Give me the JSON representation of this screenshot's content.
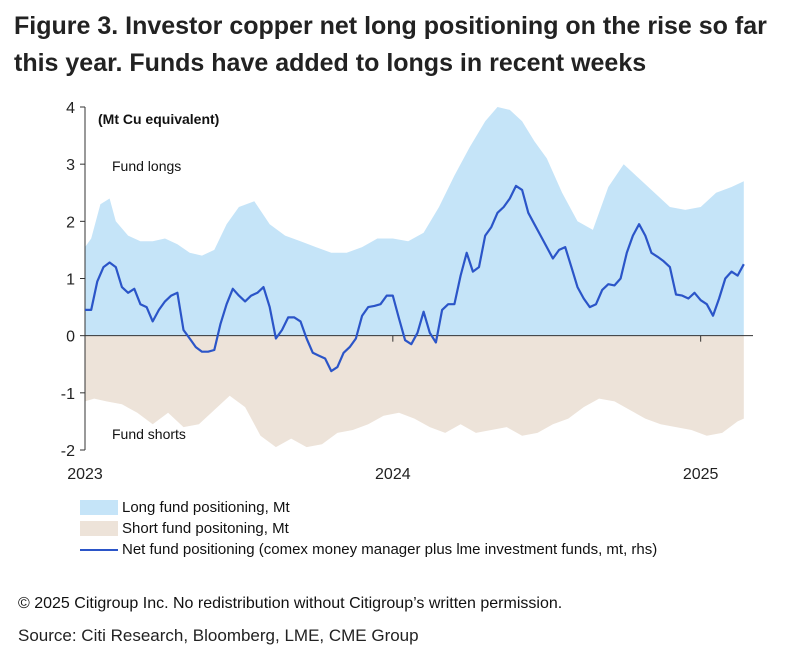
{
  "title": "Figure 3. Investor copper net long positioning on the rise so far this year. Funds have added to longs in recent weeks",
  "chart_data": {
    "type": "area",
    "unit_label": "(Mt Cu equivalent)",
    "ylim": [
      -2,
      4
    ],
    "yticks": [
      4,
      3,
      2,
      1,
      0,
      -1,
      -2
    ],
    "xlim": [
      2023.0,
      2025.17
    ],
    "xticks": [
      {
        "value": 2023.0,
        "label": "2023"
      },
      {
        "value": 2024.0,
        "label": "2024"
      },
      {
        "value": 2025.0,
        "label": "2025"
      }
    ],
    "annotations": {
      "longs": "Fund longs",
      "shorts": "Fund shorts"
    },
    "colors": {
      "long": "#c5e4f8",
      "short": "#ede3d9",
      "net": "#2b55c8"
    },
    "series": [
      {
        "name": "Long fund positioning, Mt",
        "x": [
          2023.0,
          2023.02,
          2023.05,
          2023.08,
          2023.1,
          2023.14,
          2023.18,
          2023.22,
          2023.26,
          2023.3,
          2023.34,
          2023.38,
          2023.42,
          2023.46,
          2023.5,
          2023.55,
          2023.6,
          2023.65,
          2023.7,
          2023.75,
          2023.8,
          2023.85,
          2023.9,
          2023.95,
          2024.0,
          2024.05,
          2024.1,
          2024.15,
          2024.2,
          2024.25,
          2024.3,
          2024.34,
          2024.38,
          2024.42,
          2024.46,
          2024.5,
          2024.55,
          2024.6,
          2024.65,
          2024.7,
          2024.75,
          2024.8,
          2024.85,
          2024.9,
          2024.95,
          2025.0,
          2025.05,
          2025.1,
          2025.14
        ],
        "values": [
          1.55,
          1.7,
          2.3,
          2.4,
          2.0,
          1.75,
          1.65,
          1.65,
          1.7,
          1.6,
          1.45,
          1.4,
          1.5,
          1.95,
          2.25,
          2.35,
          1.95,
          1.75,
          1.65,
          1.55,
          1.45,
          1.45,
          1.55,
          1.7,
          1.7,
          1.65,
          1.8,
          2.25,
          2.8,
          3.3,
          3.75,
          4.0,
          3.95,
          3.75,
          3.4,
          3.1,
          2.5,
          2.0,
          1.85,
          2.6,
          3.0,
          2.75,
          2.5,
          2.25,
          2.2,
          2.25,
          2.5,
          2.6,
          2.7
        ]
      },
      {
        "name": "Short fund positoning, Mt",
        "x": [
          2023.0,
          2023.03,
          2023.07,
          2023.12,
          2023.17,
          2023.22,
          2023.27,
          2023.32,
          2023.37,
          2023.42,
          2023.47,
          2023.52,
          2023.57,
          2023.62,
          2023.67,
          2023.72,
          2023.77,
          2023.82,
          2023.87,
          2023.92,
          2023.97,
          2024.02,
          2024.07,
          2024.12,
          2024.17,
          2024.22,
          2024.27,
          2024.32,
          2024.37,
          2024.42,
          2024.47,
          2024.52,
          2024.57,
          2024.62,
          2024.67,
          2024.72,
          2024.77,
          2024.82,
          2024.87,
          2024.92,
          2024.97,
          2025.02,
          2025.07,
          2025.12,
          2025.14
        ],
        "values": [
          -1.15,
          -1.1,
          -1.15,
          -1.2,
          -1.35,
          -1.55,
          -1.35,
          -1.6,
          -1.55,
          -1.3,
          -1.05,
          -1.25,
          -1.75,
          -1.95,
          -1.8,
          -1.95,
          -1.9,
          -1.7,
          -1.65,
          -1.55,
          -1.4,
          -1.35,
          -1.45,
          -1.6,
          -1.7,
          -1.55,
          -1.7,
          -1.65,
          -1.6,
          -1.75,
          -1.7,
          -1.55,
          -1.45,
          -1.25,
          -1.1,
          -1.15,
          -1.3,
          -1.45,
          -1.55,
          -1.6,
          -1.65,
          -1.75,
          -1.7,
          -1.5,
          -1.45
        ]
      },
      {
        "name": "Net fund positioning (comex money manager plus lme investment funds, mt, rhs)",
        "x": [
          2023.0,
          2023.02,
          2023.04,
          2023.06,
          2023.08,
          2023.1,
          2023.12,
          2023.14,
          2023.16,
          2023.18,
          2023.2,
          2023.22,
          2023.24,
          2023.26,
          2023.28,
          2023.3,
          2023.32,
          2023.34,
          2023.36,
          2023.38,
          2023.4,
          2023.42,
          2023.44,
          2023.46,
          2023.48,
          2023.5,
          2023.52,
          2023.54,
          2023.56,
          2023.58,
          2023.6,
          2023.62,
          2023.64,
          2023.66,
          2023.68,
          2023.7,
          2023.72,
          2023.74,
          2023.76,
          2023.78,
          2023.8,
          2023.82,
          2023.84,
          2023.86,
          2023.88,
          2023.9,
          2023.92,
          2023.94,
          2023.96,
          2023.98,
          2024.0,
          2024.02,
          2024.04,
          2024.06,
          2024.08,
          2024.1,
          2024.12,
          2024.14,
          2024.16,
          2024.18,
          2024.2,
          2024.22,
          2024.24,
          2024.26,
          2024.28,
          2024.3,
          2024.32,
          2024.34,
          2024.36,
          2024.38,
          2024.4,
          2024.42,
          2024.44,
          2024.46,
          2024.48,
          2024.5,
          2024.52,
          2024.54,
          2024.56,
          2024.58,
          2024.6,
          2024.62,
          2024.64,
          2024.66,
          2024.68,
          2024.7,
          2024.72,
          2024.74,
          2024.76,
          2024.78,
          2024.8,
          2024.82,
          2024.84,
          2024.86,
          2024.88,
          2024.9,
          2024.92,
          2024.94,
          2024.96,
          2024.98,
          2025.0,
          2025.02,
          2025.04,
          2025.06,
          2025.08,
          2025.1,
          2025.12,
          2025.14
        ],
        "values": [
          0.45,
          0.45,
          0.95,
          1.2,
          1.28,
          1.2,
          0.85,
          0.75,
          0.82,
          0.55,
          0.5,
          0.25,
          0.45,
          0.6,
          0.7,
          0.75,
          0.1,
          -0.05,
          -0.2,
          -0.28,
          -0.28,
          -0.25,
          0.2,
          0.55,
          0.82,
          0.7,
          0.6,
          0.7,
          0.75,
          0.85,
          0.5,
          -0.05,
          0.1,
          0.32,
          0.32,
          0.25,
          -0.05,
          -0.3,
          -0.35,
          -0.4,
          -0.62,
          -0.55,
          -0.3,
          -0.2,
          -0.05,
          0.35,
          0.5,
          0.52,
          0.55,
          0.7,
          0.7,
          0.3,
          -0.08,
          -0.15,
          0.05,
          0.42,
          0.05,
          -0.12,
          0.45,
          0.55,
          0.55,
          1.05,
          1.45,
          1.12,
          1.2,
          1.75,
          1.9,
          2.15,
          2.25,
          2.4,
          2.62,
          2.55,
          2.15,
          1.95,
          1.75,
          1.55,
          1.35,
          1.5,
          1.55,
          1.2,
          0.85,
          0.65,
          0.5,
          0.55,
          0.8,
          0.9,
          0.88,
          1.0,
          1.45,
          1.75,
          1.95,
          1.75,
          1.45,
          1.38,
          1.3,
          1.2,
          0.72,
          0.7,
          0.65,
          0.75,
          0.62,
          0.55,
          0.35,
          0.65,
          1.0,
          1.12,
          1.05,
          1.25
        ]
      }
    ]
  },
  "footer": {
    "copyright": "© 2025 Citigroup Inc. No redistribution without Citigroup’s written permission.",
    "source": "Source: Citi Research, Bloomberg, LME, CME Group"
  }
}
